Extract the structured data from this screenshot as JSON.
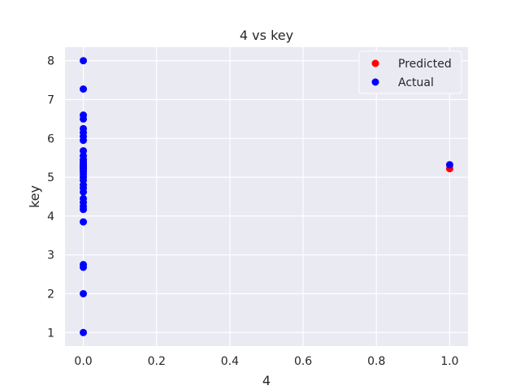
{
  "chart_data": {
    "type": "scatter",
    "title": "4 vs key",
    "xlabel": "4",
    "ylabel": "key",
    "xlim": [
      -0.05,
      1.05
    ],
    "ylim": [
      0.65,
      8.35
    ],
    "xticks": [
      0.0,
      0.2,
      0.4,
      0.6,
      0.8,
      1.0
    ],
    "xtick_labels": [
      "0.0",
      "0.2",
      "0.4",
      "0.6",
      "0.8",
      "1.0"
    ],
    "yticks": [
      1,
      2,
      3,
      4,
      5,
      6,
      7,
      8
    ],
    "ytick_labels": [
      "1",
      "2",
      "3",
      "4",
      "5",
      "6",
      "7",
      "8"
    ],
    "grid": true,
    "legend_position": "top-right",
    "series": [
      {
        "name": "Predicted",
        "color": "#ff0000",
        "points": [
          [
            0,
            5.15
          ],
          [
            0,
            5.2
          ],
          [
            0,
            5.25
          ],
          [
            0,
            5.3
          ],
          [
            0,
            5.35
          ],
          [
            0,
            5.4
          ],
          [
            1.0,
            5.22
          ]
        ]
      },
      {
        "name": "Actual",
        "color": "#0000ff",
        "points": [
          [
            0,
            8.0
          ],
          [
            0,
            7.27
          ],
          [
            0,
            6.6
          ],
          [
            0,
            6.5
          ],
          [
            0,
            6.25
          ],
          [
            0,
            6.15
          ],
          [
            0,
            6.05
          ],
          [
            0,
            5.95
          ],
          [
            0,
            5.68
          ],
          [
            0,
            5.55
          ],
          [
            0,
            5.45
          ],
          [
            0,
            5.38
          ],
          [
            0,
            5.32
          ],
          [
            0,
            5.27
          ],
          [
            0,
            5.22
          ],
          [
            0,
            5.15
          ],
          [
            0,
            5.08
          ],
          [
            0,
            5.0
          ],
          [
            0,
            4.92
          ],
          [
            0,
            4.8
          ],
          [
            0,
            4.72
          ],
          [
            0,
            4.62
          ],
          [
            0,
            4.45
          ],
          [
            0,
            4.35
          ],
          [
            0,
            4.25
          ],
          [
            0,
            4.17
          ],
          [
            0,
            3.85
          ],
          [
            0,
            2.75
          ],
          [
            0,
            2.68
          ],
          [
            0,
            2.0
          ],
          [
            0,
            1.0
          ],
          [
            1.0,
            5.32
          ]
        ]
      }
    ]
  }
}
